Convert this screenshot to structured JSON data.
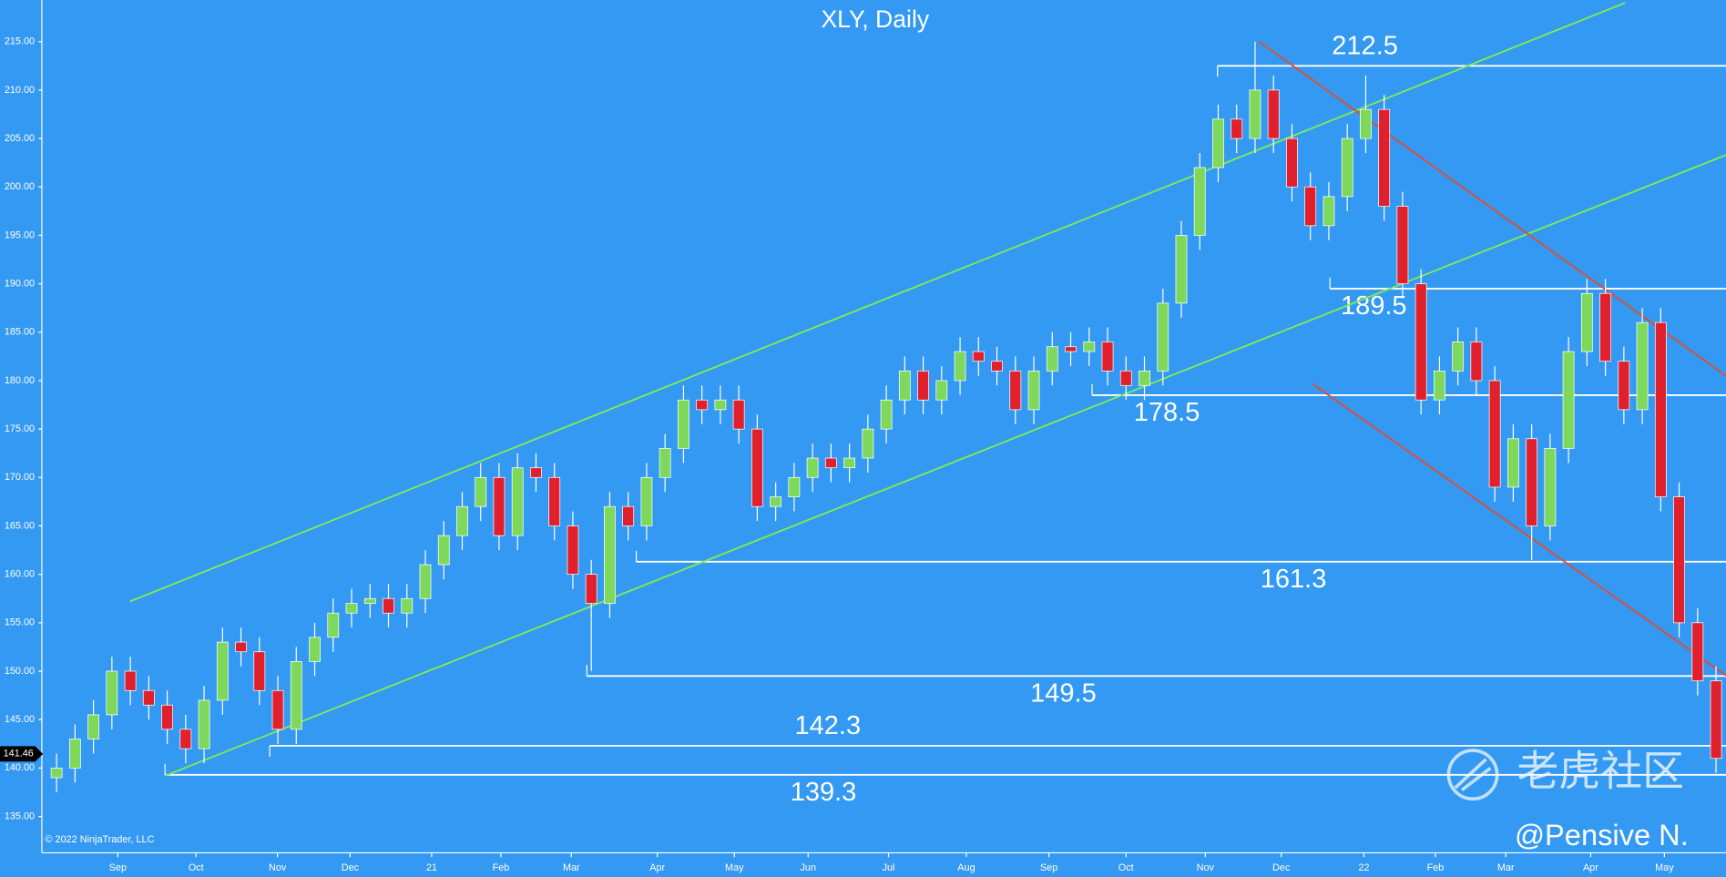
{
  "chart_data": {
    "type": "candlestick",
    "title": "XLY, Daily",
    "x": [
      4,
      9,
      14,
      19,
      24,
      29,
      34,
      39,
      44,
      49,
      54,
      59,
      64,
      69,
      74,
      79,
      84,
      89,
      94,
      99,
      104,
      109,
      114,
      119,
      124,
      129,
      134,
      139,
      144,
      149,
      154,
      159,
      164,
      169,
      174,
      179,
      184,
      189,
      194,
      199,
      204,
      209,
      214,
      219,
      224,
      229,
      234,
      239,
      244,
      249,
      254,
      259,
      264,
      269,
      274,
      279,
      284,
      289,
      294,
      299,
      304,
      309,
      314,
      319,
      324,
      329,
      334,
      339,
      344,
      349,
      354,
      359,
      364,
      369,
      374,
      379,
      384,
      389,
      394,
      399,
      404,
      409,
      414,
      419,
      424,
      429,
      434,
      439,
      444,
      449,
      454
    ],
    "open": [
      139,
      140,
      143,
      145.5,
      150,
      148,
      146.5,
      144,
      142,
      147,
      153,
      152,
      148,
      144,
      151,
      153.5,
      156,
      157,
      157.5,
      156,
      157.5,
      161,
      164,
      167,
      170,
      164,
      171,
      170,
      165,
      160,
      157,
      167,
      165,
      170,
      173,
      178,
      177,
      178,
      175,
      167,
      168,
      170,
      172,
      171,
      172,
      175,
      178,
      181,
      178,
      180,
      183,
      182,
      181,
      177,
      181,
      183.5,
      183,
      184,
      181,
      179.5,
      181,
      188,
      195,
      202,
      207,
      205,
      210,
      205,
      200,
      196,
      199,
      205,
      208,
      198,
      190,
      178,
      181,
      184,
      180,
      169,
      174,
      165,
      173,
      183,
      189,
      182,
      177,
      186,
      168,
      155,
      149
    ],
    "high": [
      141.5,
      144.5,
      147,
      151.5,
      151.5,
      149.5,
      148,
      145.5,
      148.5,
      154.5,
      154.5,
      153.5,
      149.5,
      152.5,
      155,
      157.5,
      158.5,
      159,
      159,
      159,
      162.5,
      165.5,
      168.5,
      171.5,
      171.5,
      172.5,
      172.5,
      171.5,
      166.5,
      161.5,
      168.5,
      168.5,
      171.5,
      174.5,
      179.5,
      179.5,
      179.5,
      179.5,
      176.5,
      169.5,
      171.5,
      173.5,
      173.5,
      173.5,
      176.5,
      179.5,
      182.5,
      182.5,
      181.5,
      184.5,
      184.5,
      183.5,
      182.5,
      182.5,
      185,
      185,
      185.5,
      185.5,
      182.5,
      182.5,
      189.5,
      196.5,
      203.5,
      208.5,
      208.5,
      215,
      211.5,
      206.5,
      201.5,
      200.5,
      206.5,
      211.5,
      209.5,
      199.5,
      191.5,
      182.5,
      185.5,
      185.5,
      181.5,
      175.5,
      175.5,
      174.5,
      184.5,
      190.5,
      190.5,
      183.5,
      187.5,
      187.5,
      169.5,
      156.5,
      150.5
    ],
    "low": [
      137.5,
      138.5,
      141.5,
      144,
      146.5,
      145,
      142.5,
      140.5,
      140.5,
      145.5,
      150.5,
      146.5,
      142.5,
      142.5,
      149.5,
      152,
      154.5,
      155.5,
      154.5,
      154.5,
      156,
      159.5,
      162.5,
      165.5,
      162.5,
      162.5,
      168.5,
      163.5,
      158.5,
      150,
      155.5,
      163.5,
      163.5,
      168.5,
      171.5,
      175.5,
      175.5,
      173.5,
      165.5,
      165.5,
      166.5,
      168.5,
      169.5,
      169.5,
      170.5,
      173.5,
      176.5,
      176.5,
      176.5,
      178.5,
      180.5,
      179.5,
      175.5,
      175.5,
      179.5,
      181.5,
      181.5,
      179.5,
      178,
      178,
      179.5,
      186.5,
      193.5,
      200.5,
      203.5,
      203.5,
      203.5,
      198.5,
      194.5,
      194.5,
      197.5,
      203.5,
      196.5,
      188.5,
      176.5,
      176.5,
      179.5,
      178.5,
      167.5,
      167.5,
      161.5,
      163.5,
      171.5,
      181.5,
      180.5,
      175.5,
      175.5,
      166.5,
      153.5,
      147.5,
      139.5
    ],
    "close": [
      140,
      143,
      145.5,
      150,
      148,
      146.5,
      144,
      142,
      147,
      153,
      152,
      148,
      144,
      151,
      153.5,
      156,
      157,
      157.5,
      156,
      157.5,
      161,
      164,
      167,
      170,
      164,
      171,
      170,
      165,
      160,
      157,
      167,
      165,
      170,
      173,
      178,
      177,
      178,
      175,
      167,
      168,
      170,
      172,
      171,
      172,
      175,
      178,
      181,
      178,
      180,
      183,
      182,
      181,
      177,
      181,
      183.5,
      183,
      184,
      181,
      179.5,
      181,
      188,
      195,
      202,
      207,
      205,
      210,
      205,
      200,
      196,
      199,
      205,
      208,
      198,
      190,
      178,
      181,
      184,
      180,
      169,
      174,
      165,
      173,
      183,
      189,
      182,
      177,
      186,
      168,
      155,
      149,
      141
    ],
    "up_color": "#7ed85c",
    "down_color": "#e0202c",
    "xlim": [
      0,
      456.7
    ],
    "ylim": [
      131.25,
      219.3
    ],
    "xticks": [
      {
        "value": 20.6,
        "label": "Sep"
      },
      {
        "value": 41.8,
        "label": "Oct"
      },
      {
        "value": 63.9,
        "label": "Nov"
      },
      {
        "value": 83.6,
        "label": "Dec"
      },
      {
        "value": 105.7,
        "label": "21"
      },
      {
        "value": 124.5,
        "label": "Feb"
      },
      {
        "value": 143.6,
        "label": "Mar"
      },
      {
        "value": 166.9,
        "label": "Apr"
      },
      {
        "value": 187.8,
        "label": "May"
      },
      {
        "value": 207.8,
        "label": "Jun"
      },
      {
        "value": 229.6,
        "label": "Jul"
      },
      {
        "value": 250.7,
        "label": "Aug"
      },
      {
        "value": 273.1,
        "label": "Sep"
      },
      {
        "value": 294.0,
        "label": "Oct"
      },
      {
        "value": 315.5,
        "label": "Nov"
      },
      {
        "value": 336.1,
        "label": "Dec"
      },
      {
        "value": 358.5,
        "label": "22"
      },
      {
        "value": 377.9,
        "label": "Feb"
      },
      {
        "value": 397.0,
        "label": "Mar"
      },
      {
        "value": 420.0,
        "label": "Apr"
      },
      {
        "value": 440.0,
        "label": "May"
      }
    ],
    "yticks": [
      {
        "value": 135,
        "label": "135.00"
      },
      {
        "value": 140,
        "label": "140.00"
      },
      {
        "value": 145,
        "label": "145.00"
      },
      {
        "value": 150,
        "label": "150.00"
      },
      {
        "value": 155,
        "label": "155.00"
      },
      {
        "value": 160,
        "label": "160.00"
      },
      {
        "value": 165,
        "label": "165.00"
      },
      {
        "value": 170,
        "label": "170.00"
      },
      {
        "value": 175,
        "label": "175.00"
      },
      {
        "value": 180,
        "label": "180.00"
      },
      {
        "value": 185,
        "label": "185.00"
      },
      {
        "value": 190,
        "label": "190.00"
      },
      {
        "value": 195,
        "label": "195.00"
      },
      {
        "value": 200,
        "label": "200.00"
      },
      {
        "value": 205,
        "label": "205.00"
      },
      {
        "value": 210,
        "label": "210.00"
      },
      {
        "value": 215,
        "label": "215.00"
      }
    ],
    "levels": [
      {
        "value": 212.5,
        "start_x": 318.8
      },
      {
        "value": 189.5,
        "start_x": 349.3
      },
      {
        "value": 178.5,
        "start_x": 284.8
      },
      {
        "value": 161.3,
        "start_x": 161.2
      },
      {
        "value": 149.5,
        "start_x": 147.8
      },
      {
        "value": 142.3,
        "start_x": 61.8
      },
      {
        "value": 139.3,
        "start_x": 33.4
      }
    ],
    "trendlines": [
      {
        "color": "#7ee85a",
        "x": [
          23.9,
          429.3
        ],
        "y": [
          157.2,
          219.0
        ]
      },
      {
        "color": "#7ee85a",
        "x": [
          33.4,
          456.7
        ],
        "y": [
          139.2,
          203.3
        ]
      },
      {
        "color": "#d9503a",
        "x": [
          330.1,
          456.7
        ],
        "y": [
          215.0,
          180.5
        ]
      },
      {
        "color": "#d9503a",
        "x": [
          344.5,
          456.7
        ],
        "y": [
          179.7,
          149.55
        ]
      }
    ],
    "current_price": 141.46,
    "copyright": "© 2022 NinjaTrader, LLC",
    "watermark": "老虎社区",
    "author": "@Pensive N."
  }
}
